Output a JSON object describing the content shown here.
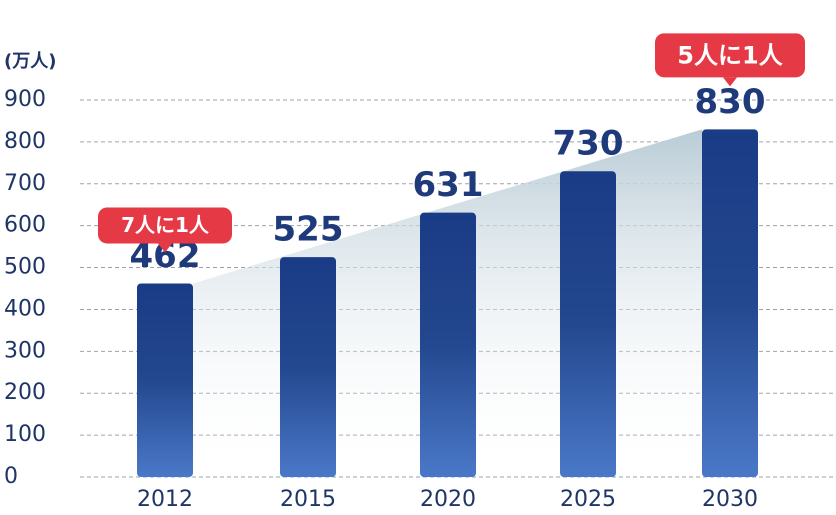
{
  "chart_data": {
    "type": "bar",
    "unit_label": "(万人)",
    "categories": [
      "2012",
      "2015",
      "2020",
      "2025",
      "2030"
    ],
    "values": [
      462,
      525,
      631,
      730,
      830
    ],
    "ylim": [
      0,
      900
    ],
    "yticks": [
      0,
      100,
      200,
      300,
      400,
      500,
      600,
      700,
      800,
      900
    ],
    "grid": true,
    "color": "#1d3f8c",
    "annotations": [
      "7人に1人",
      "5人に1人"
    ],
    "annotation_color": "#e63946"
  }
}
